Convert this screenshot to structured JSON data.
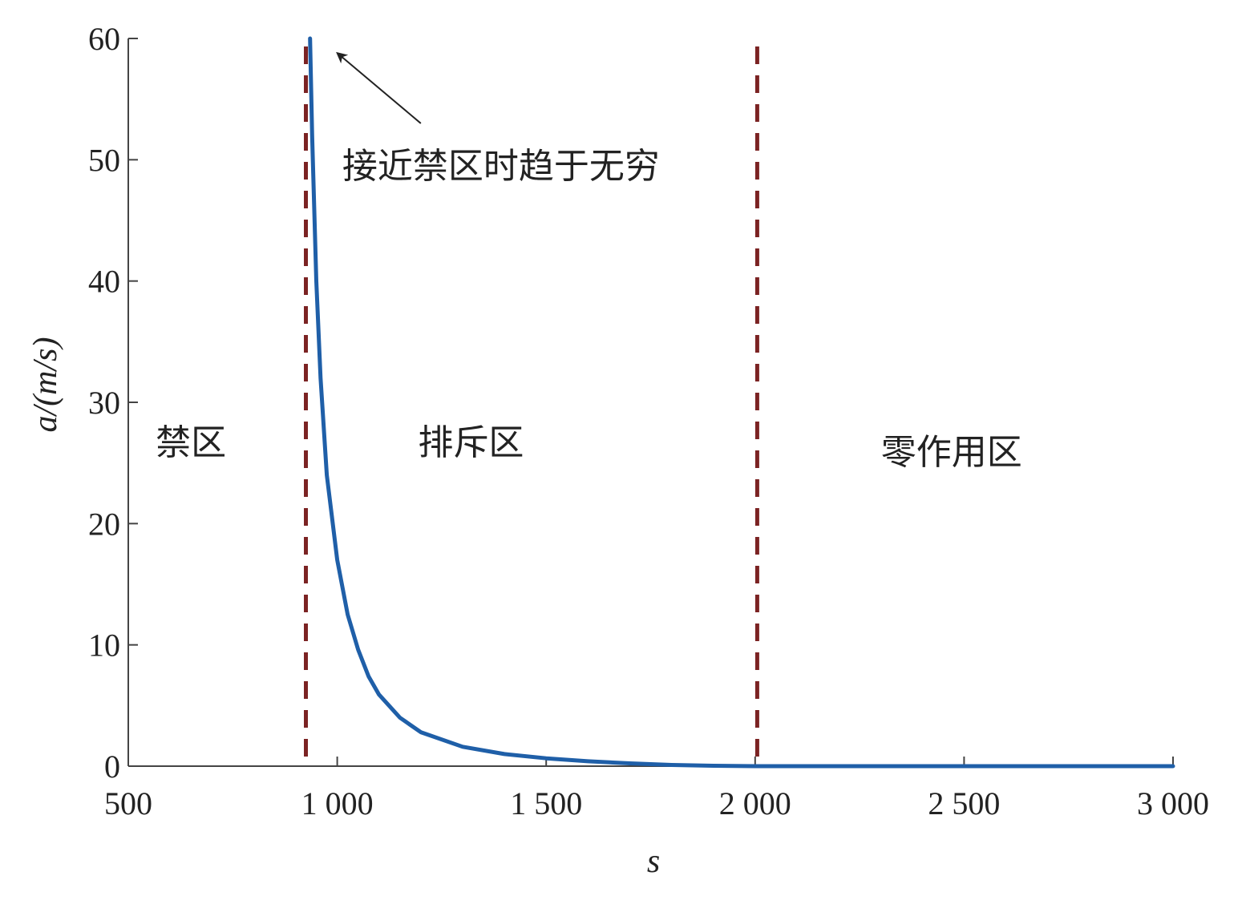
{
  "chart_data": {
    "type": "line",
    "xlabel": "s",
    "ylabel": "a/(m/s)",
    "xlim": [
      500,
      3000
    ],
    "ylim": [
      0,
      60
    ],
    "xticks": [
      500,
      1000,
      1500,
      2000,
      2500,
      3000
    ],
    "xtick_labels": [
      "500",
      "1 000",
      "1 500",
      "2 000",
      "2 500",
      "3 000"
    ],
    "yticks": [
      0,
      10,
      20,
      30,
      40,
      50,
      60
    ],
    "ytick_labels": [
      "0",
      "10",
      "20",
      "30",
      "40",
      "50",
      "60"
    ],
    "grid": false,
    "series": [
      {
        "color": "#1f5fa8",
        "x": [
          935,
          940,
          950,
          960,
          975,
          1000,
          1025,
          1050,
          1075,
          1100,
          1150,
          1200,
          1300,
          1400,
          1500,
          1600,
          1700,
          1800,
          1900,
          2000,
          2500,
          3000
        ],
        "y": [
          60,
          52,
          40,
          32,
          24,
          17,
          12.5,
          9.6,
          7.4,
          5.9,
          4.0,
          2.8,
          1.6,
          1.0,
          0.65,
          0.4,
          0.23,
          0.1,
          0.03,
          0,
          0,
          0
        ]
      }
    ],
    "vlines": [
      {
        "x": 925,
        "color": "#7b2323",
        "style": "dashed"
      },
      {
        "x": 2005,
        "color": "#7b2323",
        "style": "dashed"
      }
    ],
    "zone_labels": [
      {
        "text": "禁区",
        "x": 650,
        "y": 26.7
      },
      {
        "text": "排斥区",
        "x": 1320,
        "y": 26.7
      },
      {
        "text": "零作用区",
        "x": 2470,
        "y": 25.9
      }
    ],
    "annotation": {
      "text": "接近禁区时趋于无穷",
      "text_x": 1012,
      "text_y": 49.5,
      "arrow_from": [
        1200,
        53
      ],
      "arrow_to": [
        1000,
        58.8
      ]
    }
  }
}
